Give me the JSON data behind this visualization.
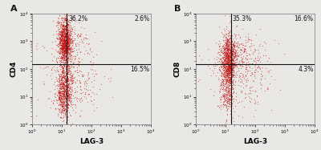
{
  "panel_A": {
    "label": "A",
    "ylabel": "CD4",
    "xlabel": "LAG-3",
    "gate_line_x": 15,
    "gate_line_y": 150,
    "quadrant_labels": {
      "UL": "36.2%",
      "UR": "2.6%",
      "LR": "16.5%"
    },
    "xlim": [
      1,
      10000
    ],
    "ylim": [
      1,
      10000
    ],
    "clusters": [
      {
        "x_log_mean": 1.1,
        "y_log_mean": 3.2,
        "x_spread": 0.12,
        "y_spread": 0.35,
        "n": 600
      },
      {
        "x_log_mean": 1.1,
        "y_log_mean": 2.8,
        "x_spread": 0.1,
        "y_spread": 0.25,
        "n": 500
      },
      {
        "x_log_mean": 1.1,
        "y_log_mean": 1.5,
        "x_spread": 0.14,
        "y_spread": 0.5,
        "n": 600
      },
      {
        "x_log_mean": 1.05,
        "y_log_mean": 1.0,
        "x_spread": 0.12,
        "y_spread": 0.35,
        "n": 300
      },
      {
        "x_log_mean": 1.35,
        "y_log_mean": 3.1,
        "x_spread": 0.35,
        "y_spread": 0.35,
        "n": 120
      },
      {
        "x_log_mean": 1.5,
        "y_log_mean": 1.4,
        "x_spread": 0.55,
        "y_spread": 0.5,
        "n": 180
      },
      {
        "x_log_mean": 1.3,
        "y_log_mean": 2.4,
        "x_spread": 0.4,
        "y_spread": 0.45,
        "n": 100
      }
    ]
  },
  "panel_B": {
    "label": "B",
    "ylabel": "CD8",
    "xlabel": "LAG-3",
    "gate_line_x": 15,
    "gate_line_y": 150,
    "quadrant_labels": {
      "UL": "35.3%",
      "UR": "16.6%",
      "LR": "4.3%"
    },
    "xlim": [
      1,
      10000
    ],
    "ylim": [
      1,
      10000
    ],
    "clusters": [
      {
        "x_log_mean": 1.1,
        "y_log_mean": 2.5,
        "x_spread": 0.13,
        "y_spread": 0.38,
        "n": 700
      },
      {
        "x_log_mean": 1.1,
        "y_log_mean": 2.0,
        "x_spread": 0.1,
        "y_spread": 0.28,
        "n": 400
      },
      {
        "x_log_mean": 1.05,
        "y_log_mean": 1.1,
        "x_spread": 0.13,
        "y_spread": 0.38,
        "n": 280
      },
      {
        "x_log_mean": 1.4,
        "y_log_mean": 2.5,
        "x_spread": 0.45,
        "y_spread": 0.38,
        "n": 220
      },
      {
        "x_log_mean": 1.55,
        "y_log_mean": 2.0,
        "x_spread": 0.55,
        "y_spread": 0.4,
        "n": 180
      },
      {
        "x_log_mean": 1.5,
        "y_log_mean": 1.1,
        "x_spread": 0.5,
        "y_spread": 0.38,
        "n": 70
      }
    ]
  },
  "dot_color": "#c41010",
  "dot_size": 0.8,
  "dot_alpha": 0.55,
  "bg_color": "#eae8e4",
  "axes_color": "#eae8e4",
  "gate_color": "#111111",
  "text_color": "#111111",
  "axis_label_fontsize": 6.5,
  "pct_fontsize": 5.5,
  "panel_label_fontsize": 8,
  "tick_labelsize": 4.0
}
